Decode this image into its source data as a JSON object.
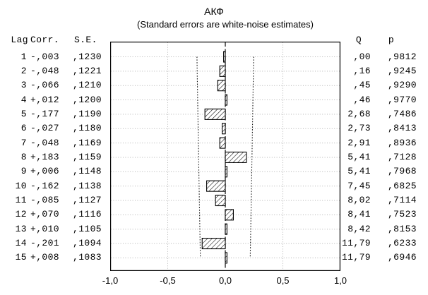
{
  "title": "АКФ",
  "subtitle": "(Standard errors are white-noise estimates)",
  "columns": {
    "lag": "Lag",
    "corr": "Corr.",
    "se": "S.E.",
    "q": "Q",
    "p": "p"
  },
  "rows": [
    {
      "lag": "1",
      "corr": "-,003",
      "se": ",1230",
      "q": ",00",
      "p": ",9812"
    },
    {
      "lag": "2",
      "corr": "-,048",
      "se": ",1221",
      "q": ",16",
      "p": ",9245"
    },
    {
      "lag": "3",
      "corr": "-,066",
      "se": ",1210",
      "q": ",45",
      "p": ",9290"
    },
    {
      "lag": "4",
      "corr": "+,012",
      "se": ",1200",
      "q": ",46",
      "p": ",9770"
    },
    {
      "lag": "5",
      "corr": "-,177",
      "se": ",1190",
      "q": "2,68",
      "p": ",7486"
    },
    {
      "lag": "6",
      "corr": "-,027",
      "se": ",1180",
      "q": "2,73",
      "p": ",8413"
    },
    {
      "lag": "7",
      "corr": "-,048",
      "se": ",1169",
      "q": "2,91",
      "p": ",8936"
    },
    {
      "lag": "8",
      "corr": "+,183",
      "se": ",1159",
      "q": "5,41",
      "p": ",7128"
    },
    {
      "lag": "9",
      "corr": "+,006",
      "se": ",1148",
      "q": "5,41",
      "p": ",7968"
    },
    {
      "lag": "10",
      "corr": "-,162",
      "se": ",1138",
      "q": "7,45",
      "p": ",6825"
    },
    {
      "lag": "11",
      "corr": "-,085",
      "se": ",1127",
      "q": "8,02",
      "p": ",7114"
    },
    {
      "lag": "12",
      "corr": "+,070",
      "se": ",1116",
      "q": "8,41",
      "p": ",7523"
    },
    {
      "lag": "13",
      "corr": "+,010",
      "se": ",1105",
      "q": "8,42",
      "p": ",8153"
    },
    {
      "lag": "14",
      "corr": "-,201",
      "se": ",1094",
      "q": "11,79",
      "p": ",6233"
    },
    {
      "lag": "15",
      "corr": "+,008",
      "se": ",1083",
      "q": "11,79",
      "p": ",6946"
    }
  ],
  "x_axis": {
    "tick_labels": [
      "-1,0",
      "-0,5",
      "0,0",
      "0,5",
      "1,0"
    ],
    "tick_values": [
      -1.0,
      -0.5,
      0.0,
      0.5,
      1.0
    ]
  },
  "chart_data": {
    "type": "bar",
    "orientation": "horizontal",
    "title": "АКФ",
    "subtitle": "(Standard errors are white-noise estimates)",
    "xlabel": "",
    "ylabel": "Lag",
    "xlim": [
      -1.0,
      1.0
    ],
    "x_ticks": [
      -1.0,
      -0.5,
      0.0,
      0.5,
      1.0
    ],
    "grid": true,
    "legend": false,
    "lags": [
      1,
      2,
      3,
      4,
      5,
      6,
      7,
      8,
      9,
      10,
      11,
      12,
      13,
      14,
      15
    ],
    "correlations": [
      -0.003,
      -0.048,
      -0.066,
      0.012,
      -0.177,
      -0.027,
      -0.048,
      0.183,
      0.006,
      -0.162,
      -0.085,
      0.07,
      0.01,
      -0.201,
      0.008
    ],
    "std_errors": [
      0.123,
      0.1221,
      0.121,
      0.12,
      0.119,
      0.118,
      0.1169,
      0.1159,
      0.1148,
      0.1138,
      0.1127,
      0.1116,
      0.1105,
      0.1094,
      0.1083
    ],
    "q_stats": [
      0.0,
      0.16,
      0.45,
      0.46,
      2.68,
      2.73,
      2.91,
      5.41,
      5.41,
      7.45,
      8.02,
      8.41,
      8.42,
      11.79,
      11.79
    ],
    "p_values": [
      0.9812,
      0.9245,
      0.929,
      0.977,
      0.7486,
      0.8413,
      0.8936,
      0.7128,
      0.7968,
      0.6825,
      0.7114,
      0.7523,
      0.8153,
      0.6233,
      0.6946
    ],
    "confidence_band": "±2·S.E. (white-noise), dotted funnel lines"
  },
  "colors": {
    "background": "#ffffff",
    "text": "#000000",
    "grid_dotted": "#b4b4b4",
    "line_dark": "#1a1a1a",
    "bar_fill": "#ffffff",
    "bar_hatch": "#000000"
  }
}
